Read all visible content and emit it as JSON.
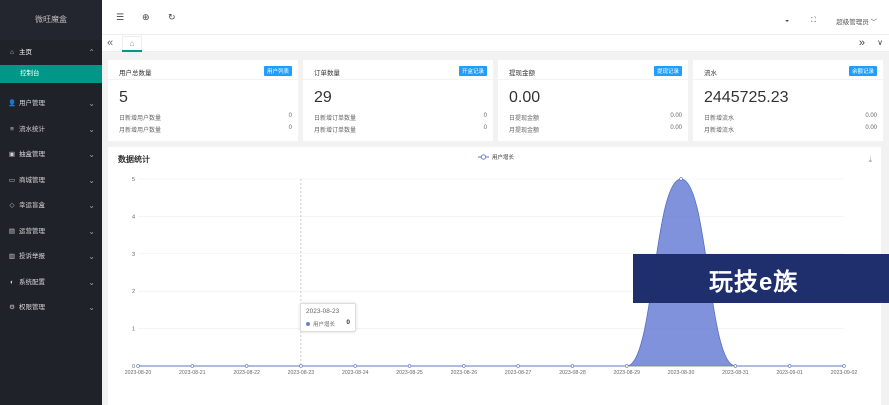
{
  "sidebar": {
    "brand": "微旺魔盒",
    "home": {
      "label": "主页",
      "icon": "home-icon"
    },
    "home_sub": "控制台",
    "items": [
      {
        "label": "用户管理",
        "icon": "users-icon",
        "glyph": "👤"
      },
      {
        "label": "流水统计",
        "icon": "list-icon",
        "glyph": "≡"
      },
      {
        "label": "抽盒管理",
        "icon": "box-icon",
        "glyph": "▣"
      },
      {
        "label": "商城管理",
        "icon": "cart-icon",
        "glyph": "▭"
      },
      {
        "label": "幸运盲盒",
        "icon": "gift-icon",
        "glyph": "◇"
      },
      {
        "label": "运营管理",
        "icon": "layers-icon",
        "glyph": "▤"
      },
      {
        "label": "投诉举报",
        "icon": "report-icon",
        "glyph": "▥"
      },
      {
        "label": "系统配置",
        "icon": "settings-icon",
        "glyph": "◐"
      },
      {
        "label": "权限管理",
        "icon": "gear-icon",
        "glyph": "⚙"
      }
    ]
  },
  "header": {
    "user": "超级管理员"
  },
  "cards": [
    {
      "title": "用户总数量",
      "badge": "用户列表",
      "value": "5",
      "rows": [
        {
          "label": "日新增用户数量",
          "value": "0"
        },
        {
          "label": "月新增用户数量",
          "value": "0"
        }
      ]
    },
    {
      "title": "订单数量",
      "badge": "开盒记录",
      "value": "29",
      "rows": [
        {
          "label": "日新增订单数量",
          "value": "0"
        },
        {
          "label": "月新增订单数量",
          "value": "0"
        }
      ]
    },
    {
      "title": "提现金额",
      "badge": "提现记录",
      "value": "0.00",
      "rows": [
        {
          "label": "日提现金额",
          "value": "0.00"
        },
        {
          "label": "月提现金额",
          "value": "0.00"
        }
      ]
    },
    {
      "title": "流水",
      "badge": "余额记录",
      "value": "2445725.23",
      "rows": [
        {
          "label": "日新增流水",
          "value": "0.00"
        },
        {
          "label": "月新增流水",
          "value": "0.00"
        }
      ]
    }
  ],
  "chart": {
    "title": "数据统计"
  },
  "chart_data": {
    "type": "area",
    "title": "数据统计",
    "x": [
      "2023-08-20",
      "2023-08-21",
      "2023-08-22",
      "2023-08-23",
      "2023-08-24",
      "2023-08-25",
      "2023-08-26",
      "2023-08-27",
      "2023-08-28",
      "2023-08-29",
      "2023-08-30",
      "2023-08-31",
      "2023-09-01",
      "2023-09-02"
    ],
    "series": [
      {
        "name": "用户增长",
        "values": [
          0,
          0,
          0,
          0,
          0,
          0,
          0,
          0,
          0,
          0,
          5,
          0,
          0,
          0
        ],
        "color": "#6a7fd6"
      }
    ],
    "yticks": [
      "0",
      "1",
      "2",
      "3",
      "4",
      "5"
    ],
    "ylim": [
      0,
      5
    ],
    "legend": "top-center",
    "grid": true,
    "smooth": true
  },
  "tooltip": {
    "date": "2023-08-23",
    "series": "用户增长",
    "value": "0"
  },
  "watermark": "玩技e族"
}
